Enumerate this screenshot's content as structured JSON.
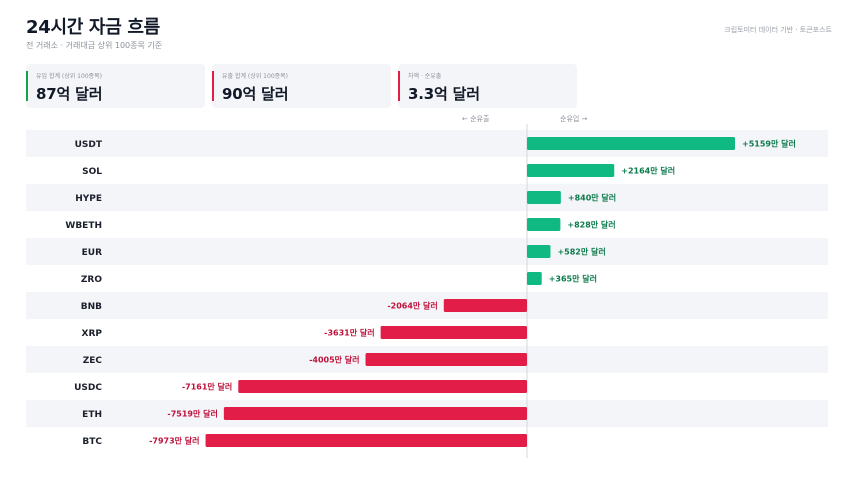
{
  "header": {
    "title": "24시간 자금 흐름",
    "subtitle": "전 거래소 · 거래대금 상위 100종목 기준",
    "source": "크립토미터 데이터 기반 · 토큰포스트"
  },
  "cards": [
    {
      "label": "유입 합계 (상위 100종목)",
      "value": "87억 달러",
      "accent": "#16a34a"
    },
    {
      "label": "유출 합계 (상위 100종목)",
      "value": "90억 달러",
      "accent": "#e11d48"
    },
    {
      "label": "차액 · 순유출",
      "value": "3.3억 달러",
      "accent": "#e11d48"
    }
  ],
  "direction": {
    "left": "← 순유출",
    "right": "순유입 →"
  },
  "colors": {
    "inflow": "#10b981",
    "outflow": "#e11d48",
    "inflow_text": "#0b7a4b",
    "outflow_text": "#be123c",
    "stripe": "#f4f5f8"
  },
  "chart_data": {
    "type": "bar",
    "orientation": "horizontal",
    "categories": [
      "USDT",
      "SOL",
      "HYPE",
      "WBETH",
      "EUR",
      "ZRO",
      "BNB",
      "XRP",
      "ZEC",
      "USDC",
      "ETH",
      "BTC"
    ],
    "values": [
      5159,
      2164,
      840,
      828,
      582,
      365,
      -2064,
      -3631,
      -4005,
      -7161,
      -7519,
      -7973
    ],
    "value_labels": [
      "+5159만 달러",
      "+2164만 달러",
      "+840만 달러",
      "+828만 달러",
      "+582만 달러",
      "+365만 달러",
      "-2064만 달러",
      "-3631만 달러",
      "-4005만 달러",
      "-7161만 달러",
      "-7519만 달러",
      "-7973만 달러"
    ],
    "unit": "만 달러",
    "grid": false
  }
}
